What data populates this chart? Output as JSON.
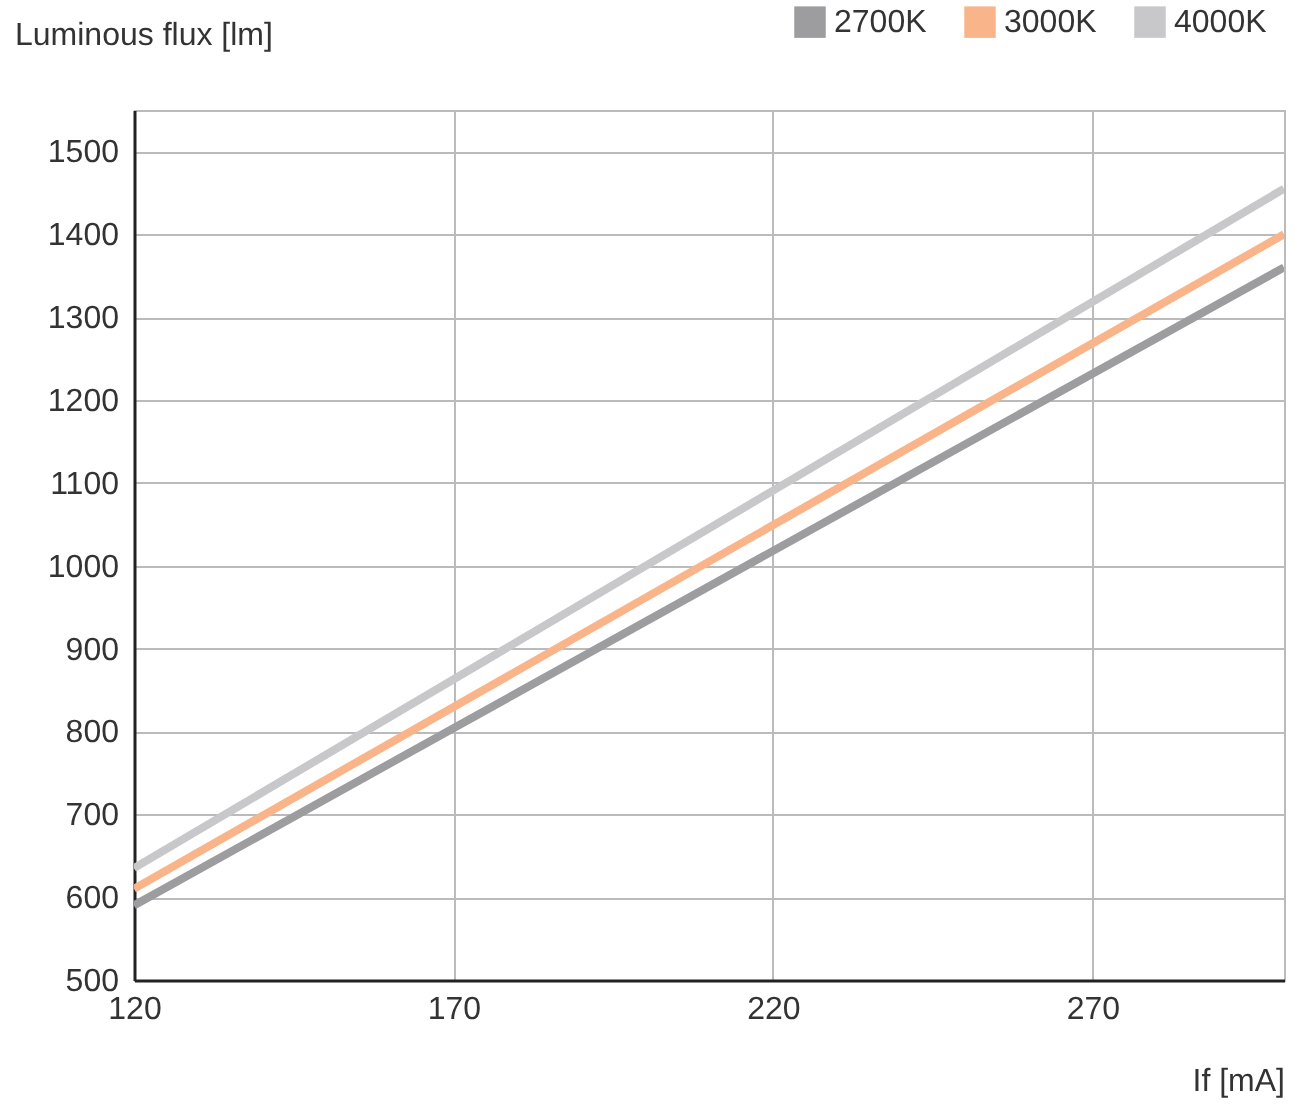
{
  "chart_data": {
    "type": "line",
    "xlabel": "If [mA]",
    "ylabel": "Luminous flux [lm]",
    "x": [
      120,
      300
    ],
    "series": [
      {
        "name": "2700K",
        "color": "#9d9d9f",
        "values": [
          590,
          1360
        ]
      },
      {
        "name": "3000K",
        "color": "#f9b48a",
        "values": [
          610,
          1400
        ]
      },
      {
        "name": "4000K",
        "color": "#c8c8ca",
        "values": [
          635,
          1455
        ]
      }
    ],
    "xlim": [
      120,
      300
    ],
    "xticks": [
      120,
      170,
      220,
      270
    ],
    "ylim": [
      500,
      1550
    ],
    "yticks": [
      500,
      600,
      700,
      800,
      900,
      1000,
      1100,
      1200,
      1300,
      1400,
      1500
    ],
    "grid": true,
    "legend": "top right",
    "marker": "none",
    "line_style": "solid"
  }
}
